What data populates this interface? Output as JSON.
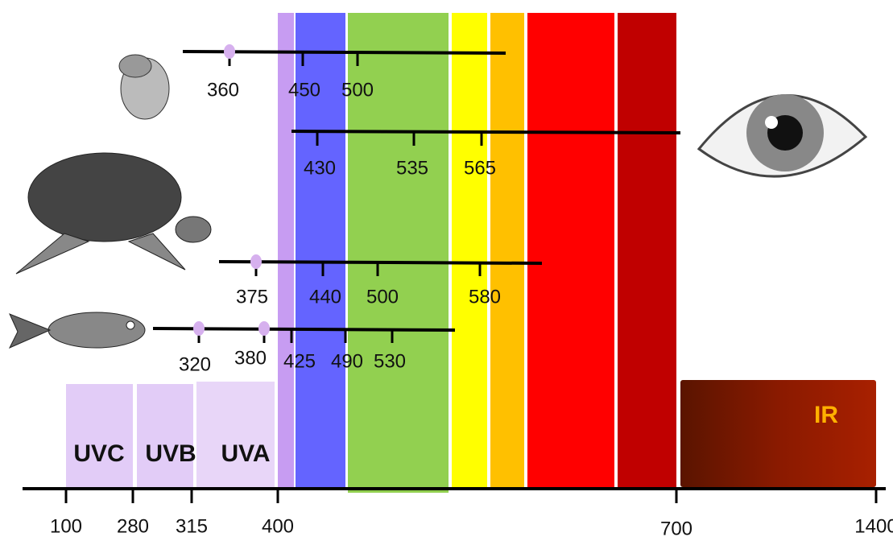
{
  "axis": {
    "ticks": [
      100,
      280,
      315,
      400,
      700,
      1400
    ]
  },
  "bands": {
    "uv": [
      "UVC",
      "UVB",
      "UVA"
    ],
    "ir": "IR"
  },
  "species": [
    {
      "peaks": [
        360,
        450,
        500
      ]
    },
    {
      "peaks": [
        430,
        535,
        565
      ]
    },
    {
      "peaks": [
        375,
        440,
        500,
        580
      ]
    },
    {
      "peaks": [
        320,
        380,
        425,
        490,
        530
      ]
    }
  ]
}
